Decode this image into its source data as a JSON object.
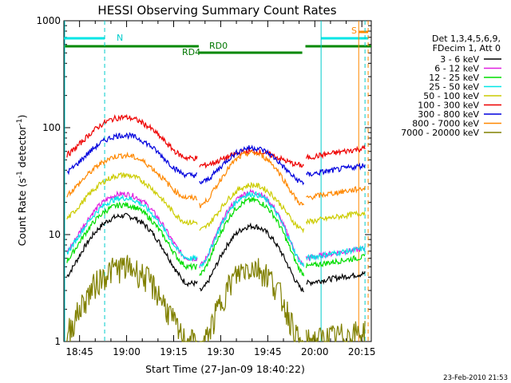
{
  "chart_data": {
    "type": "line",
    "title": "HESSI Observing Summary Count Rates",
    "ylabel_main": "Count Rate (s",
    "ylabel_sup1": "-1",
    "ylabel_mid": " detector",
    "ylabel_sup2": "-1",
    "ylabel_end": ")",
    "xlabel": "Start Time (27-Jan-09 18:40:22)",
    "y_scale": "log",
    "ylim": [
      1,
      1000
    ],
    "x_range": [
      "18:40",
      "20:18"
    ],
    "x_tick_labels": [
      "18:45",
      "19:00",
      "19:15",
      "19:30",
      "19:45",
      "20:00",
      "20:15"
    ],
    "y_tick_labels": [
      "1",
      "10",
      "100",
      "1000"
    ],
    "footer": "23-Feb-2010 21:53",
    "legend_header": [
      "Det 1,3,4,5,6,9,",
      "FDecim 1, Att 0"
    ],
    "annotations": {
      "night": "N",
      "saa": "S",
      "rd0": "RD0",
      "rd4": "RD4"
    },
    "x_labels_minutes": [
      0,
      0,
      0,
      0,
      0,
      0,
      0
    ],
    "series": [
      {
        "name": "3 - 6 keV",
        "color": "#000000",
        "amp": 15,
        "base": 3.5,
        "p2": 12
      },
      {
        "name": "6 - 12 keV",
        "color": "#e020e0",
        "amp": 24,
        "base": 6,
        "p2": 25
      },
      {
        "name": "12 - 25 keV",
        "color": "#00dd00",
        "amp": 19,
        "base": 5,
        "p2": 21
      },
      {
        "name": "25 - 50 keV",
        "color": "#00e6e6",
        "amp": 22,
        "base": 6,
        "p2": 24
      },
      {
        "name": "50 - 100 keV",
        "color": "#cccc00",
        "amp": 36,
        "base": 13,
        "p2": 29
      },
      {
        "name": "100 - 300 keV",
        "color": "#ee0000",
        "amp": 125,
        "base": 52,
        "p2": 60
      },
      {
        "name": "300 - 800 keV",
        "color": "#0000dd",
        "amp": 85,
        "base": 36,
        "p2": 65
      },
      {
        "name": "800 - 7000 keV",
        "color": "#ff8800",
        "amp": 55,
        "base": 22,
        "p2": 58
      },
      {
        "name": "7000 - 20000 keV",
        "color": "#808000",
        "amp": 5,
        "base": 1,
        "p2": 5
      }
    ],
    "flags": {
      "saa_intervals": [
        [
          "20:14",
          "20:17"
        ]
      ],
      "night_intervals": [
        [
          "18:40",
          "18:53"
        ],
        [
          "20:02",
          "20:17"
        ]
      ],
      "rd0_intervals": [
        [
          "18:40",
          "19:23"
        ],
        [
          "19:57",
          "20:18"
        ]
      ],
      "rd4_intervals": [
        [
          "19:23",
          "19:56"
        ]
      ]
    }
  }
}
